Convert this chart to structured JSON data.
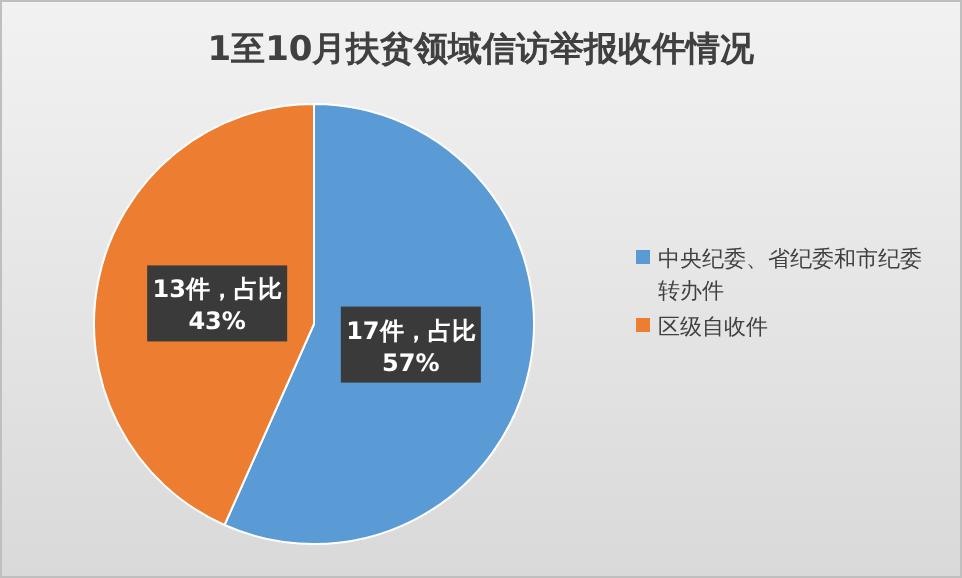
{
  "chart_data": {
    "type": "pie",
    "title": "1至10月扶贫领域信访举报收件情况",
    "categories": [
      "中央纪委、省纪委和市纪委转办件",
      "区级自收件"
    ],
    "values": [
      17,
      13
    ],
    "colors": [
      "#5b9bd5",
      "#ed7d31"
    ],
    "value_labels": [
      "17件，占比\n57%",
      "13件，占比\n43%"
    ],
    "legend": "right"
  }
}
